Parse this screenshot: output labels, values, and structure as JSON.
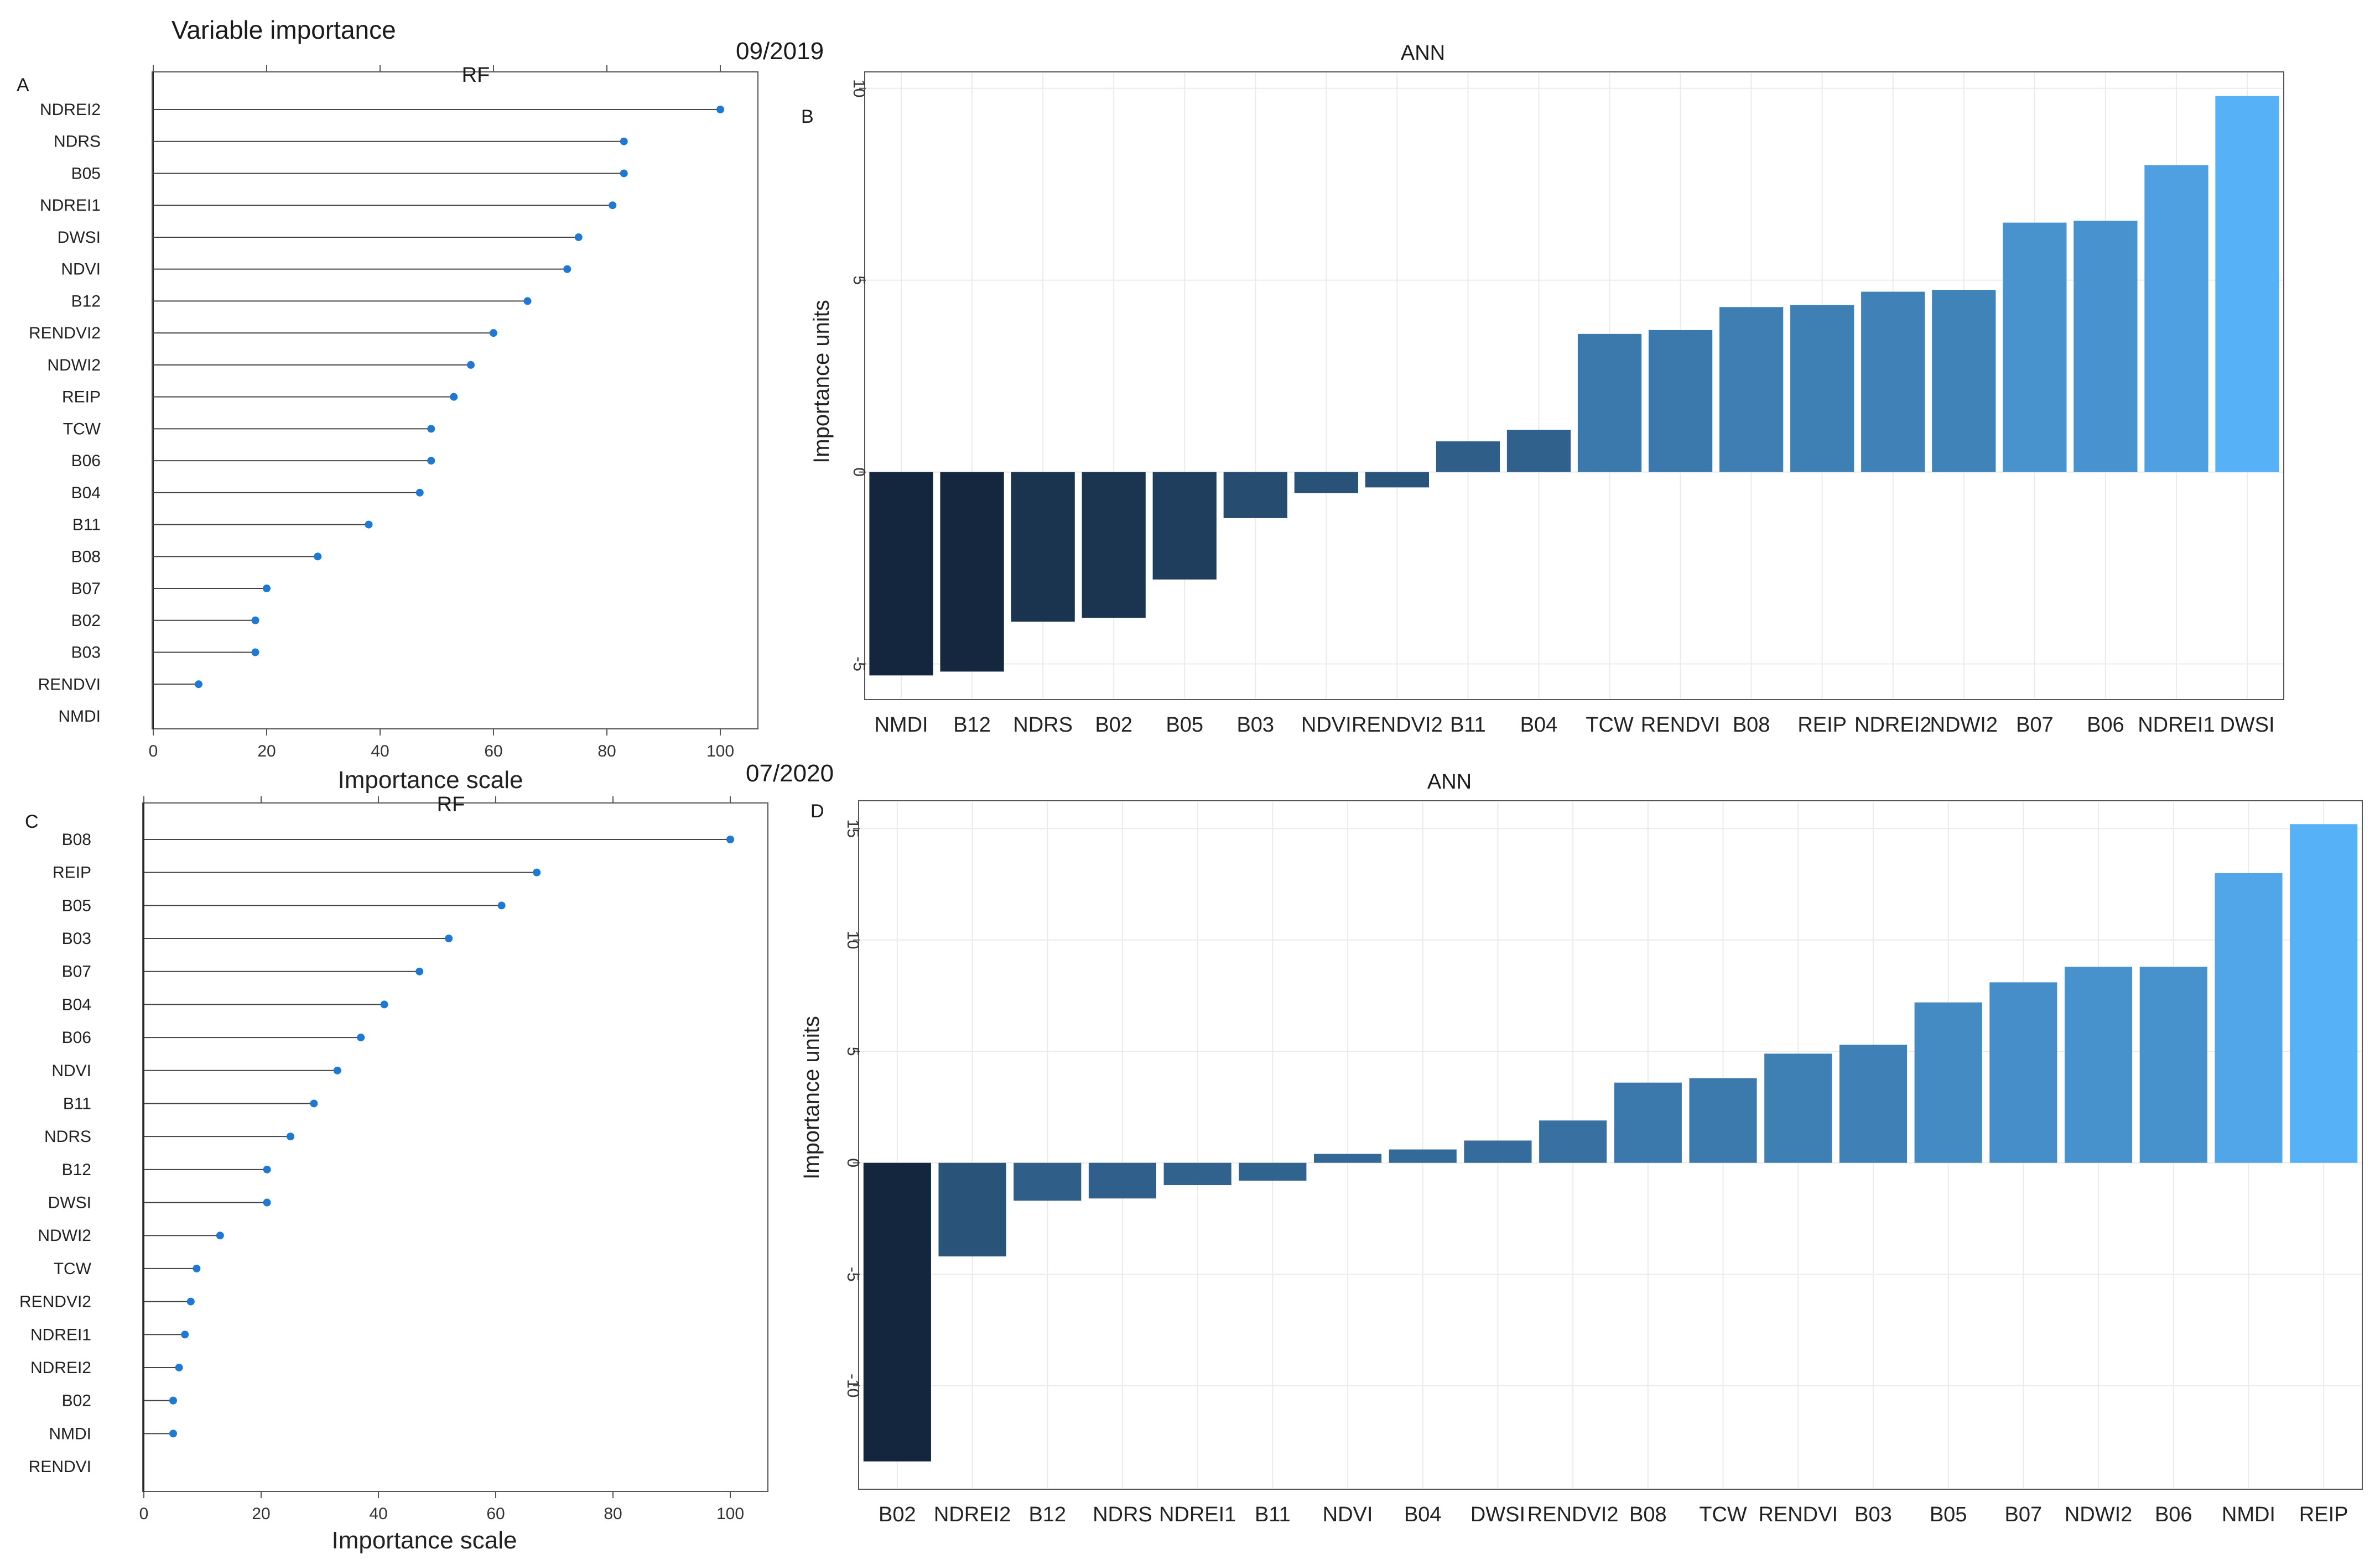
{
  "figure": {
    "title": "Variable importance",
    "date_2019": "09/2019",
    "date_2020": "07/2020"
  },
  "colors": {
    "rf_point": "#1f78d1",
    "ann_dark": "#14263d",
    "ann_light": "#56b1f7",
    "grid": "#ebebeb"
  },
  "chart_data": [
    {
      "id": "A",
      "type": "lollipop",
      "title": "RF",
      "xlabel": "Importance scale",
      "xlim": [
        0,
        100
      ],
      "xticks": [
        0,
        20,
        40,
        60,
        80,
        100
      ],
      "categories": [
        "NDREI2",
        "NDRS",
        "B05",
        "NDREI1",
        "DWSI",
        "NDVI",
        "B12",
        "RENDVI2",
        "NDWI2",
        "REIP",
        "TCW",
        "B06",
        "B04",
        "B11",
        "B08",
        "B07",
        "B02",
        "B03",
        "RENDVI",
        "NMDI"
      ],
      "values": [
        100,
        83,
        83,
        81,
        75,
        73,
        66,
        60,
        56,
        53,
        49,
        49,
        47,
        38,
        29,
        20,
        18,
        18,
        8,
        0
      ]
    },
    {
      "id": "B",
      "type": "bar",
      "title": "ANN",
      "ylabel": "Importance units",
      "ylim": [
        -5.9,
        10.4
      ],
      "yticks": [
        -5,
        0,
        5,
        10
      ],
      "categories": [
        "NMDI",
        "B12",
        "NDRS",
        "B02",
        "B05",
        "B03",
        "NDVI",
        "RENDVI2",
        "B11",
        "B04",
        "TCW",
        "RENDVI",
        "B08",
        "REIP",
        "NDREI2",
        "NDWI2",
        "B07",
        "B06",
        "NDREI1",
        "DWSI"
      ],
      "values": [
        -5.3,
        -5.2,
        -3.9,
        -3.8,
        -2.8,
        -1.2,
        -0.55,
        -0.4,
        0.8,
        1.1,
        3.6,
        3.7,
        4.3,
        4.35,
        4.7,
        4.75,
        6.5,
        6.55,
        8.0,
        9.8
      ]
    },
    {
      "id": "C",
      "type": "lollipop",
      "title": "RF",
      "xlabel": "Importance scale",
      "xlim": [
        0,
        100
      ],
      "xticks": [
        0,
        20,
        40,
        60,
        80,
        100
      ],
      "categories": [
        "B08",
        "REIP",
        "B05",
        "B03",
        "B07",
        "B04",
        "B06",
        "NDVI",
        "B11",
        "NDRS",
        "B12",
        "DWSI",
        "NDWI2",
        "TCW",
        "RENDVI2",
        "NDREI1",
        "NDREI2",
        "B02",
        "NMDI",
        "RENDVI"
      ],
      "values": [
        100,
        67,
        61,
        52,
        47,
        41,
        37,
        33,
        29,
        25,
        21,
        21,
        13,
        9,
        8,
        7,
        6,
        5,
        5,
        0
      ]
    },
    {
      "id": "D",
      "type": "bar",
      "title": "ANN",
      "ylabel": "Importance units",
      "ylim": [
        -14.6,
        16.2
      ],
      "yticks": [
        -10,
        -5,
        0,
        5,
        10,
        15
      ],
      "categories": [
        "B02",
        "NDREI2",
        "B12",
        "NDRS",
        "NDREI1",
        "B11",
        "NDVI",
        "B04",
        "DWSI",
        "RENDVI2",
        "B08",
        "TCW",
        "RENDVI",
        "B03",
        "B05",
        "B07",
        "NDWI2",
        "B06",
        "NMDI",
        "REIP"
      ],
      "values": [
        -13.4,
        -4.2,
        -1.7,
        -1.6,
        -1.0,
        -0.8,
        0.4,
        0.6,
        1.0,
        1.9,
        3.6,
        3.8,
        4.9,
        5.3,
        7.2,
        8.1,
        8.8,
        8.8,
        13.0,
        15.2
      ]
    }
  ]
}
